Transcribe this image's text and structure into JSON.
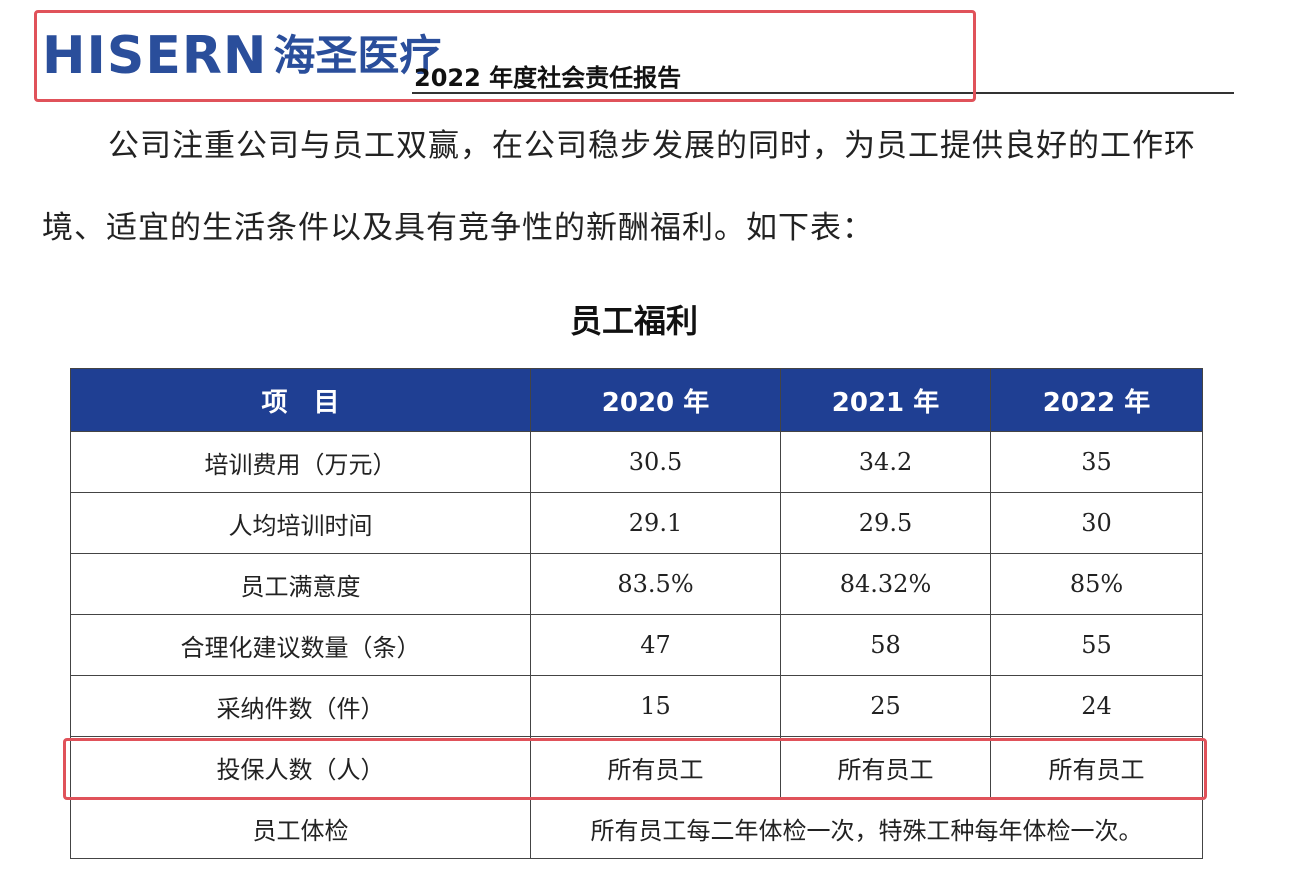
{
  "header": {
    "logo_en": "HISERN",
    "logo_cn": "海圣医疗",
    "report_title": "2022 年度社会责任报告"
  },
  "body_text": {
    "paragraph_line1": "公司注重公司与员工双赢，在公司稳步发展的同时，为员工提供良好的工作环",
    "paragraph_line2": "境、适宜的生活条件以及具有竞争性的新酬福利。如下表："
  },
  "table": {
    "title": "员工福利",
    "headers": [
      "项　目",
      "2020 年",
      "2021 年",
      "2022 年"
    ],
    "rows": [
      [
        "培训费用（万元）",
        "30.5",
        "34.2",
        "35"
      ],
      [
        "人均培训时间",
        "29.1",
        "29.5",
        "30"
      ],
      [
        "员工满意度",
        "83.5%",
        "84.32%",
        "85%"
      ],
      [
        "合理化建议数量（条）",
        "47",
        "58",
        "55"
      ],
      [
        "采纳件数（件）",
        "15",
        "25",
        "24"
      ],
      [
        "投保人数（人）",
        "所有员工",
        "所有员工",
        "所有员工"
      ]
    ],
    "last_row": {
      "label": "员工体检",
      "value": "所有员工每二年体检一次，特殊工种每年体检一次。"
    }
  },
  "colors": {
    "brand_blue": "#2a4e9b",
    "table_header_bg": "#1f3f93",
    "highlight_red": "#e0525a"
  }
}
